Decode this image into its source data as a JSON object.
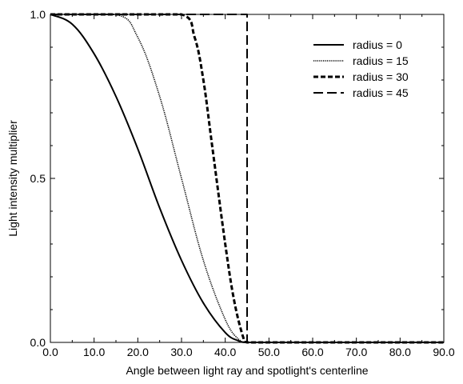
{
  "chart_data": {
    "type": "line",
    "xlabel": "Angle between light ray and spotlight's centerline",
    "ylabel": "Light intensity multiplier",
    "xlim": [
      0,
      90
    ],
    "ylim": [
      0,
      1
    ],
    "x_ticks": [
      "0.0",
      "10.0",
      "20.0",
      "30.0",
      "40.0",
      "50.0",
      "60.0",
      "70.0",
      "80.0",
      "90.0"
    ],
    "y_ticks": [
      "0.0",
      "0.5",
      "1.0"
    ],
    "legend_position": "top-right",
    "grid": false,
    "series": [
      {
        "name": "radius = 0",
        "style": "solid",
        "x": [
          0,
          5,
          10,
          15,
          20,
          25,
          30,
          35,
          40,
          43,
          45,
          50,
          60,
          70,
          80,
          90
        ],
        "y": [
          1.0,
          0.97,
          0.88,
          0.75,
          0.59,
          0.41,
          0.25,
          0.12,
          0.03,
          0.005,
          0.0,
          0.0,
          0.0,
          0.0,
          0.0,
          0.0
        ]
      },
      {
        "name": "radius = 15",
        "style": "dotted",
        "x": [
          0,
          15,
          20,
          25,
          30,
          35,
          40,
          43,
          45,
          50,
          60,
          70,
          80,
          90
        ],
        "y": [
          1.0,
          1.0,
          0.93,
          0.75,
          0.5,
          0.25,
          0.07,
          0.01,
          0.0,
          0.0,
          0.0,
          0.0,
          0.0,
          0.0
        ]
      },
      {
        "name": "radius = 30",
        "style": "dashed",
        "x": [
          0,
          30,
          33,
          35,
          37,
          40,
          42,
          44,
          45,
          50,
          60,
          70,
          80,
          90
        ],
        "y": [
          1.0,
          1.0,
          0.93,
          0.8,
          0.6,
          0.3,
          0.13,
          0.02,
          0.0,
          0.0,
          0.0,
          0.0,
          0.0,
          0.0
        ]
      },
      {
        "name": "radius = 45",
        "style": "long-dashed",
        "x": [
          0,
          45,
          45,
          50,
          60,
          70,
          80,
          90
        ],
        "y": [
          1.0,
          1.0,
          0.0,
          0.0,
          0.0,
          0.0,
          0.0,
          0.0
        ]
      }
    ]
  }
}
